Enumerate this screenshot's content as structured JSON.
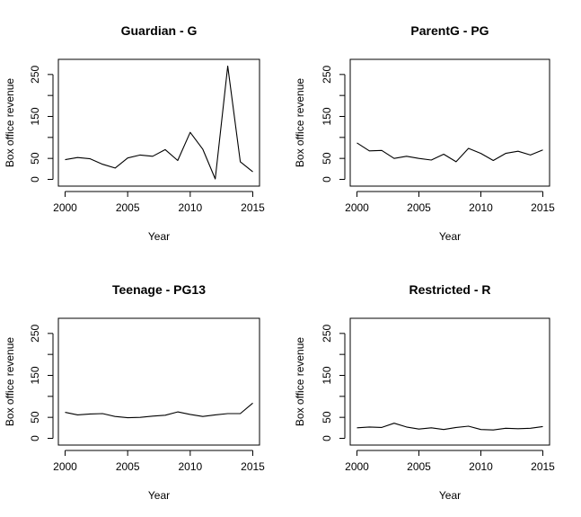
{
  "chart_data": [
    {
      "type": "line",
      "title": "Guardian - G",
      "xlabel": "Year",
      "ylabel": "Box office revenue",
      "x": [
        2000,
        2001,
        2002,
        2003,
        2004,
        2005,
        2006,
        2007,
        2008,
        2009,
        2010,
        2011,
        2012,
        2013,
        2014,
        2015
      ],
      "y": [
        47,
        52,
        49,
        36,
        27,
        51,
        58,
        55,
        71,
        45,
        112,
        72,
        1,
        270,
        42,
        18
      ],
      "xlim": [
        2000,
        2015
      ],
      "ylim": [
        0,
        270
      ],
      "xticks": [
        "2000",
        "2005",
        "2010",
        "2015"
      ],
      "yticks": [
        "0",
        "50",
        "150",
        "250"
      ],
      "grid": false
    },
    {
      "type": "line",
      "title": "ParentG - PG",
      "xlabel": "Year",
      "ylabel": "Box office revenue",
      "x": [
        2000,
        2001,
        2002,
        2003,
        2004,
        2005,
        2006,
        2007,
        2008,
        2009,
        2010,
        2011,
        2012,
        2013,
        2014,
        2015
      ],
      "y": [
        87,
        68,
        69,
        50,
        55,
        50,
        46,
        60,
        42,
        74,
        62,
        45,
        62,
        67,
        58,
        70
      ],
      "xlim": [
        2000,
        2015
      ],
      "ylim": [
        0,
        270
      ],
      "xticks": [
        "2000",
        "2005",
        "2010",
        "2015"
      ],
      "yticks": [
        "0",
        "50",
        "150",
        "250"
      ],
      "grid": false
    },
    {
      "type": "line",
      "title": "Teenage - PG13",
      "xlabel": "Year",
      "ylabel": "Box office revenue",
      "x": [
        2000,
        2001,
        2002,
        2003,
        2004,
        2005,
        2006,
        2007,
        2008,
        2009,
        2010,
        2011,
        2012,
        2013,
        2014,
        2015
      ],
      "y": [
        62,
        56,
        58,
        59,
        52,
        49,
        50,
        53,
        55,
        63,
        57,
        52,
        56,
        59,
        59,
        84
      ],
      "xlim": [
        2000,
        2015
      ],
      "ylim": [
        0,
        270
      ],
      "xticks": [
        "2000",
        "2005",
        "2010",
        "2015"
      ],
      "yticks": [
        "0",
        "50",
        "150",
        "250"
      ],
      "grid": false
    },
    {
      "type": "line",
      "title": "Restricted - R",
      "xlabel": "Year",
      "ylabel": "Box office revenue",
      "x": [
        2000,
        2001,
        2002,
        2003,
        2004,
        2005,
        2006,
        2007,
        2008,
        2009,
        2010,
        2011,
        2012,
        2013,
        2014,
        2015
      ],
      "y": [
        25,
        27,
        26,
        36,
        27,
        22,
        25,
        21,
        26,
        29,
        21,
        20,
        24,
        23,
        24,
        28
      ],
      "xlim": [
        2000,
        2015
      ],
      "ylim": [
        0,
        270
      ],
      "xticks": [
        "2000",
        "2005",
        "2010",
        "2015"
      ],
      "yticks": [
        "0",
        "50",
        "150",
        "250"
      ],
      "grid": false
    }
  ]
}
